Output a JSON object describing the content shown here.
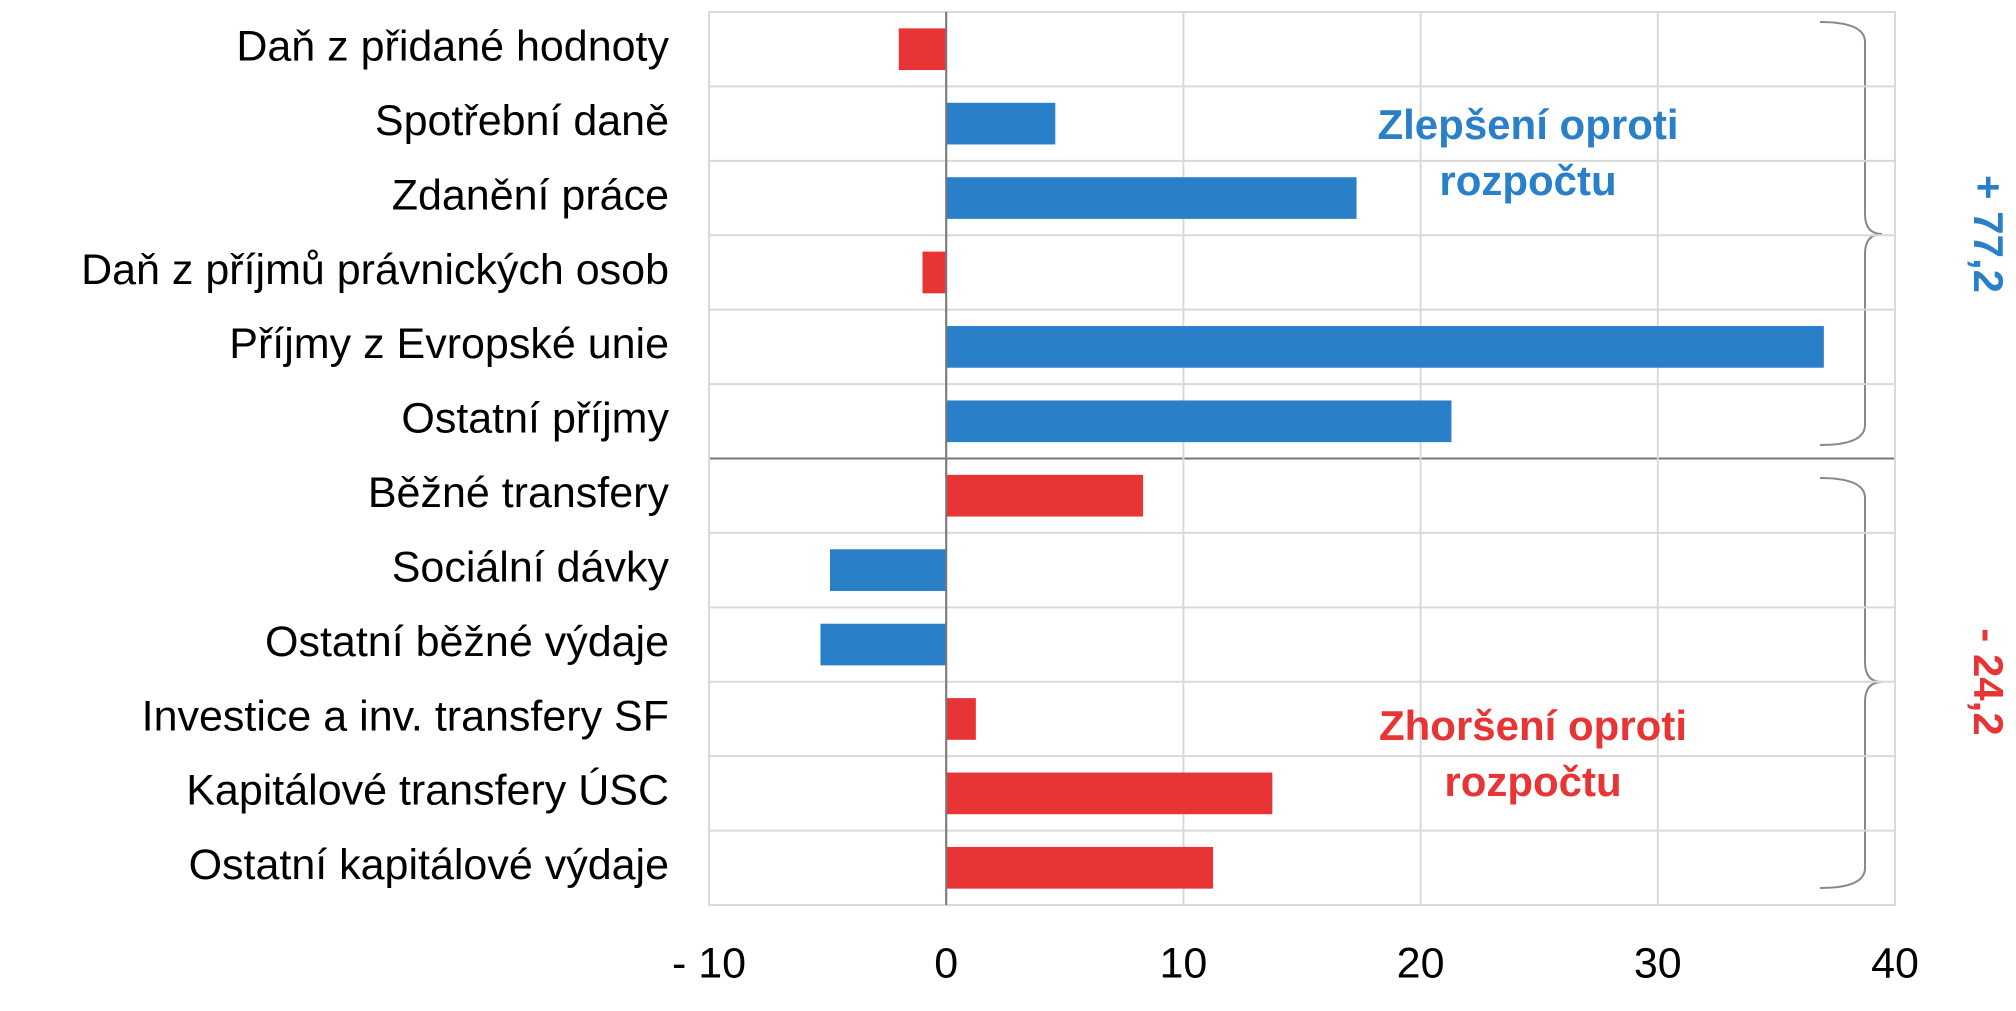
{
  "chart_data": {
    "type": "barh",
    "categories": [
      "Daň z přidané hodnoty",
      "Spotřební daně",
      "Zdanění práce",
      "Daň z příjmů právnických osob",
      "Příjmy z Evropské unie",
      "Ostatní příjmy",
      "Běžné transfery",
      "Sociální dávky",
      "Ostatní běžné výdaje",
      "Investice a inv. transfery SF",
      "Kapitálové transfery ÚSC",
      "Ostatní kapitálové výdaje"
    ],
    "values": [
      -2.0,
      4.6,
      17.3,
      -1.0,
      37.0,
      21.3,
      8.3,
      -4.9,
      -5.3,
      1.25,
      13.75,
      11.25
    ],
    "colors": [
      "#e83434",
      "#2980c8",
      "#2980c8",
      "#e83434",
      "#2980c8",
      "#2980c8",
      "#e83434",
      "#2980c8",
      "#2980c8",
      "#e83434",
      "#e83434",
      "#e83434"
    ],
    "xlim": [
      -10,
      40
    ],
    "xticks": [
      {
        "value": -10,
        "label": "- 10"
      },
      0,
      10,
      20,
      30,
      40
    ],
    "grid": true,
    "annotations": [
      {
        "text": [
          "Zlepšení oproti",
          "rozpočtu"
        ],
        "color": "#2980c8"
      },
      {
        "text": [
          "Zhoršení oproti",
          "rozpočtu"
        ],
        "color": "#e83434"
      },
      {
        "text": "+ 77,2",
        "color": "#2980c8"
      },
      {
        "text": "- 24,2",
        "color": "#e83434"
      }
    ]
  }
}
